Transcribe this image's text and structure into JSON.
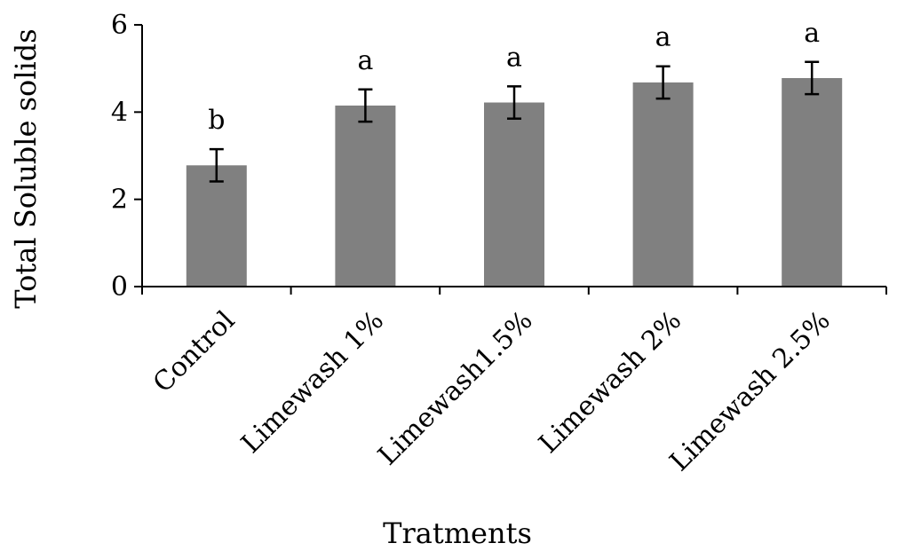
{
  "chart_data": {
    "type": "bar",
    "title": "",
    "xlabel": "Tratments",
    "ylabel": "Total Soluble solids",
    "ylim": [
      0,
      6
    ],
    "yticks": [
      0,
      2,
      4,
      6
    ],
    "grid": false,
    "legend": "none",
    "categories": [
      "Control",
      "Limewash 1%",
      "Limewash1.5%",
      "Limewash 2%",
      "Limewash 2.5%"
    ],
    "values": [
      2.78,
      4.15,
      4.22,
      4.68,
      4.78
    ],
    "errors": [
      0.37,
      0.37,
      0.37,
      0.37,
      0.37
    ],
    "significance_labels": [
      "b",
      "a",
      "a",
      "a",
      "a"
    ],
    "bar_color": "#808080"
  }
}
